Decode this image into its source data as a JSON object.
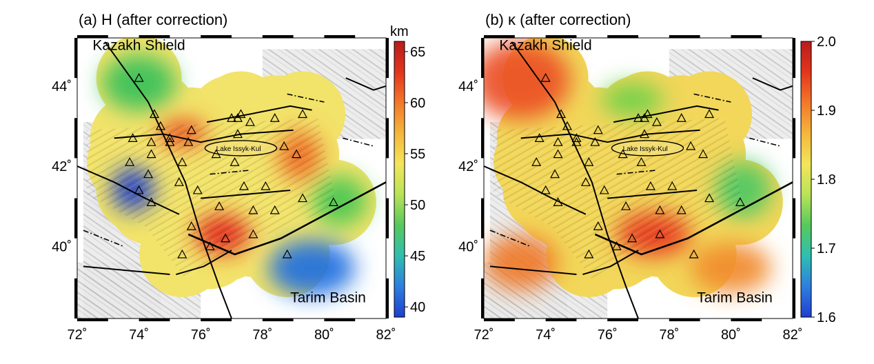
{
  "panels": [
    {
      "id": "a",
      "title": "(a) H (after correction)",
      "colorbar": {
        "unit": "km",
        "ticks": [
          "65",
          "60",
          "55",
          "50",
          "45",
          "40"
        ],
        "range": [
          39,
          66
        ],
        "colormap": "rainbow"
      },
      "colors": {
        "background": "#f2e36a",
        "anomalies": [
          {
            "name": "high-southeast",
            "color": "#e3221a"
          },
          {
            "name": "high-center-west",
            "color": "#e84a1c"
          },
          {
            "name": "high-east",
            "color": "#ef6a22"
          },
          {
            "name": "low-west",
            "color": "#2041c9"
          },
          {
            "name": "low-tarim",
            "color": "#1f6fe0"
          },
          {
            "name": "mid-north",
            "color": "#36c05a"
          },
          {
            "name": "mid-east",
            "color": "#46c852"
          }
        ]
      }
    },
    {
      "id": "b",
      "title": "(b) κ (after correction)",
      "colorbar": {
        "unit": "",
        "ticks": [
          "2.0",
          "1.9",
          "1.8",
          "1.7",
          "1.6"
        ],
        "range": [
          1.6,
          2.0
        ],
        "colormap": "rainbow"
      },
      "colors": {
        "background": "#f2d75a",
        "anomalies": [
          {
            "name": "high-northwest",
            "color": "#ec4e22"
          },
          {
            "name": "high-southwest",
            "color": "#ef7a28"
          },
          {
            "name": "high-southeast",
            "color": "#e8391c"
          },
          {
            "name": "high-tarim",
            "color": "#f18a2b"
          },
          {
            "name": "low-north",
            "color": "#6cd04a"
          },
          {
            "name": "low-east",
            "color": "#4cc864"
          }
        ]
      }
    }
  ],
  "map": {
    "region_labels": {
      "kazakh": "Kazakh Shield",
      "tarim": "Tarim Basin",
      "lake": "Lake Issyk-Kul"
    },
    "x_ticks": [
      "72˚",
      "74˚",
      "76˚",
      "78˚",
      "80˚",
      "82˚"
    ],
    "y_ticks": [
      "44˚",
      "42˚",
      "40˚"
    ],
    "lon_range": [
      72,
      82
    ],
    "lat_range": [
      38.2,
      45.2
    ],
    "stations": [
      [
        74.0,
        44.2
      ],
      [
        74.5,
        43.3
      ],
      [
        74.7,
        43.0
      ],
      [
        75.0,
        42.7
      ],
      [
        75.7,
        42.9
      ],
      [
        77.0,
        43.2
      ],
      [
        77.3,
        43.3
      ],
      [
        77.2,
        43.2
      ],
      [
        77.6,
        43.1
      ],
      [
        78.4,
        43.2
      ],
      [
        79.3,
        43.3
      ],
      [
        73.8,
        42.7
      ],
      [
        74.4,
        42.6
      ],
      [
        75.0,
        42.6
      ],
      [
        75.6,
        42.6
      ],
      [
        76.5,
        42.3
      ],
      [
        77.2,
        42.8
      ],
      [
        78.7,
        42.5
      ],
      [
        73.7,
        42.1
      ],
      [
        74.4,
        42.3
      ],
      [
        75.4,
        42.1
      ],
      [
        77.1,
        42.1
      ],
      [
        79.1,
        42.3
      ],
      [
        74.3,
        41.8
      ],
      [
        75.3,
        41.6
      ],
      [
        75.9,
        41.4
      ],
      [
        77.4,
        41.5
      ],
      [
        78.1,
        41.5
      ],
      [
        74.0,
        41.4
      ],
      [
        74.4,
        41.1
      ],
      [
        76.6,
        41.0
      ],
      [
        77.7,
        40.9
      ],
      [
        78.4,
        40.9
      ],
      [
        79.3,
        41.2
      ],
      [
        80.3,
        41.1
      ],
      [
        75.7,
        40.5
      ],
      [
        76.8,
        40.2
      ],
      [
        77.7,
        40.3
      ],
      [
        75.4,
        39.8
      ],
      [
        76.3,
        40.0
      ],
      [
        78.8,
        39.8
      ]
    ]
  }
}
